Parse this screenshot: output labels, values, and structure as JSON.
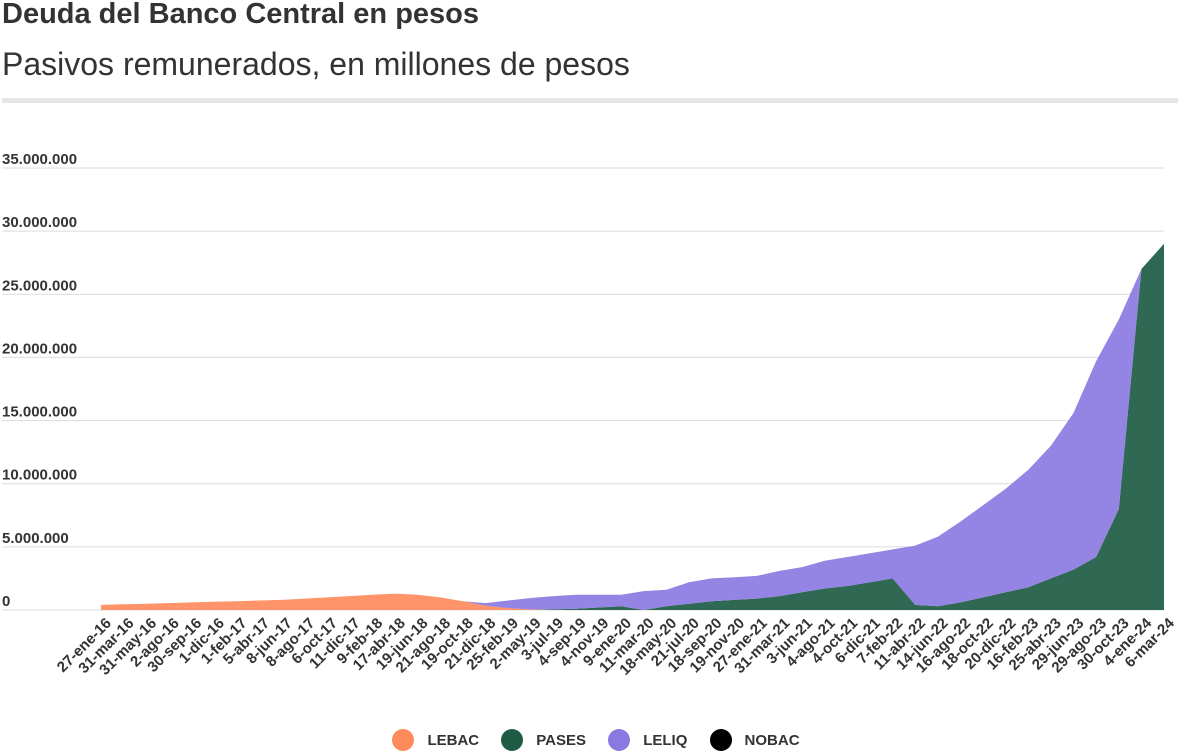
{
  "header": {
    "title": "Deuda del Banco Central en pesos",
    "subtitle": "Pasivos remunerados, en millones de pesos"
  },
  "chart_data": {
    "type": "area",
    "stacked": true,
    "grid": true,
    "legend_position": "bottom",
    "ylim": [
      0,
      35000000
    ],
    "y_ticks": [
      0,
      5000000,
      10000000,
      15000000,
      20000000,
      25000000,
      30000000,
      35000000
    ],
    "y_tick_labels": [
      "0",
      "5.000.000",
      "10.000.000",
      "15.000.000",
      "20.000.000",
      "25.000.000",
      "30.000.000",
      "35.000.000"
    ],
    "x_tick_labels": [
      "27-ene-16",
      "31-mar-16",
      "31-may-16",
      "2-ago-16",
      "30-sep-16",
      "1-dic-16",
      "1-feb-17",
      "5-abr-17",
      "8-jun-17",
      "8-ago-17",
      "6-oct-17",
      "11-dic-17",
      "9-feb-18",
      "17-abr-18",
      "19-jun-18",
      "21-ago-18",
      "19-oct-18",
      "21-dic-18",
      "25-feb-19",
      "2-may-19",
      "3-jul-19",
      "4-sep-19",
      "4-nov-19",
      "9-ene-20",
      "11-mar-20",
      "18-may-20",
      "21-jul-20",
      "18-sep-20",
      "19-nov-20",
      "27-ene-21",
      "31-mar-21",
      "3-jun-21",
      "4-ago-21",
      "4-oct-21",
      "6-dic-21",
      "7-feb-22",
      "11-abr-22",
      "14-jun-22",
      "16-ago-22",
      "18-oct-22",
      "20-dic-22",
      "16-feb-23",
      "25-abr-23",
      "29-jun-23",
      "29-ago-23",
      "30-oct-23",
      "4-ene-24",
      "6-mar-24"
    ],
    "x": [
      "27-ene-16",
      "31-mar-16",
      "31-may-16",
      "2-ago-16",
      "30-sep-16",
      "1-dic-16",
      "1-feb-17",
      "5-abr-17",
      "8-jun-17",
      "8-ago-17",
      "6-oct-17",
      "11-dic-17",
      "9-feb-18",
      "17-abr-18",
      "19-jun-18",
      "21-ago-18",
      "19-oct-18",
      "21-dic-18",
      "25-feb-19",
      "2-may-19",
      "3-jul-19",
      "4-sep-19",
      "4-nov-19",
      "9-ene-20",
      "11-mar-20",
      "18-may-20",
      "21-jul-20",
      "18-sep-20",
      "19-nov-20",
      "27-ene-21",
      "31-mar-21",
      "3-jun-21",
      "4-ago-21",
      "4-oct-21",
      "6-dic-21",
      "7-feb-22",
      "11-abr-22",
      "14-jun-22",
      "16-ago-22",
      "18-oct-22",
      "20-dic-22",
      "16-feb-23",
      "25-abr-23",
      "29-jun-23",
      "29-ago-23",
      "30-oct-23",
      "4-ene-24",
      "6-mar-24"
    ],
    "series": [
      {
        "name": "LEBAC",
        "color": "#ff8a5c",
        "values": [
          400000,
          450000,
          500000,
          550000,
          600000,
          650000,
          700000,
          750000,
          800000,
          900000,
          1000000,
          1100000,
          1200000,
          1300000,
          1200000,
          1000000,
          700000,
          350000,
          150000,
          50000,
          0,
          0,
          0,
          0,
          0,
          0,
          0,
          0,
          0,
          0,
          0,
          0,
          0,
          0,
          0,
          0,
          0,
          0,
          0,
          0,
          0,
          0,
          0,
          0,
          0,
          0,
          0,
          0
        ]
      },
      {
        "name": "PASES",
        "color": "#1e5c44",
        "values": [
          0,
          0,
          0,
          0,
          0,
          0,
          0,
          0,
          0,
          0,
          0,
          0,
          0,
          0,
          0,
          0,
          0,
          0,
          0,
          0,
          50000,
          100000,
          200000,
          300000,
          0,
          300000,
          500000,
          700000,
          800000,
          900000,
          1100000,
          1400000,
          1700000,
          1900000,
          2200000,
          2500000,
          400000,
          300000,
          600000,
          1000000,
          1400000,
          1800000,
          2500000,
          3200000,
          4200000,
          8000000,
          27000000,
          29000000
        ]
      },
      {
        "name": "LELIQ",
        "color": "#8b79e2",
        "values": [
          0,
          0,
          0,
          0,
          0,
          0,
          0,
          0,
          0,
          0,
          0,
          0,
          0,
          0,
          0,
          0,
          0,
          200000,
          600000,
          900000,
          1050000,
          1100000,
          1000000,
          900000,
          1500000,
          1300000,
          1700000,
          1800000,
          1800000,
          1800000,
          2000000,
          2000000,
          2200000,
          2300000,
          2300000,
          2300000,
          4700000,
          5500000,
          6400000,
          7300000,
          8200000,
          9300000,
          10500000,
          12400000,
          15500000,
          15000000,
          0,
          0
        ]
      },
      {
        "name": "NOBAC",
        "color": "#000000",
        "values": [
          0,
          0,
          0,
          0,
          0,
          0,
          0,
          0,
          0,
          0,
          0,
          0,
          0,
          0,
          0,
          0,
          0,
          0,
          0,
          0,
          0,
          0,
          0,
          0,
          0,
          0,
          0,
          0,
          0,
          0,
          0,
          0,
          0,
          0,
          0,
          0,
          0,
          0,
          0,
          0,
          0,
          0,
          0,
          0,
          0,
          0,
          0,
          0
        ]
      }
    ]
  }
}
